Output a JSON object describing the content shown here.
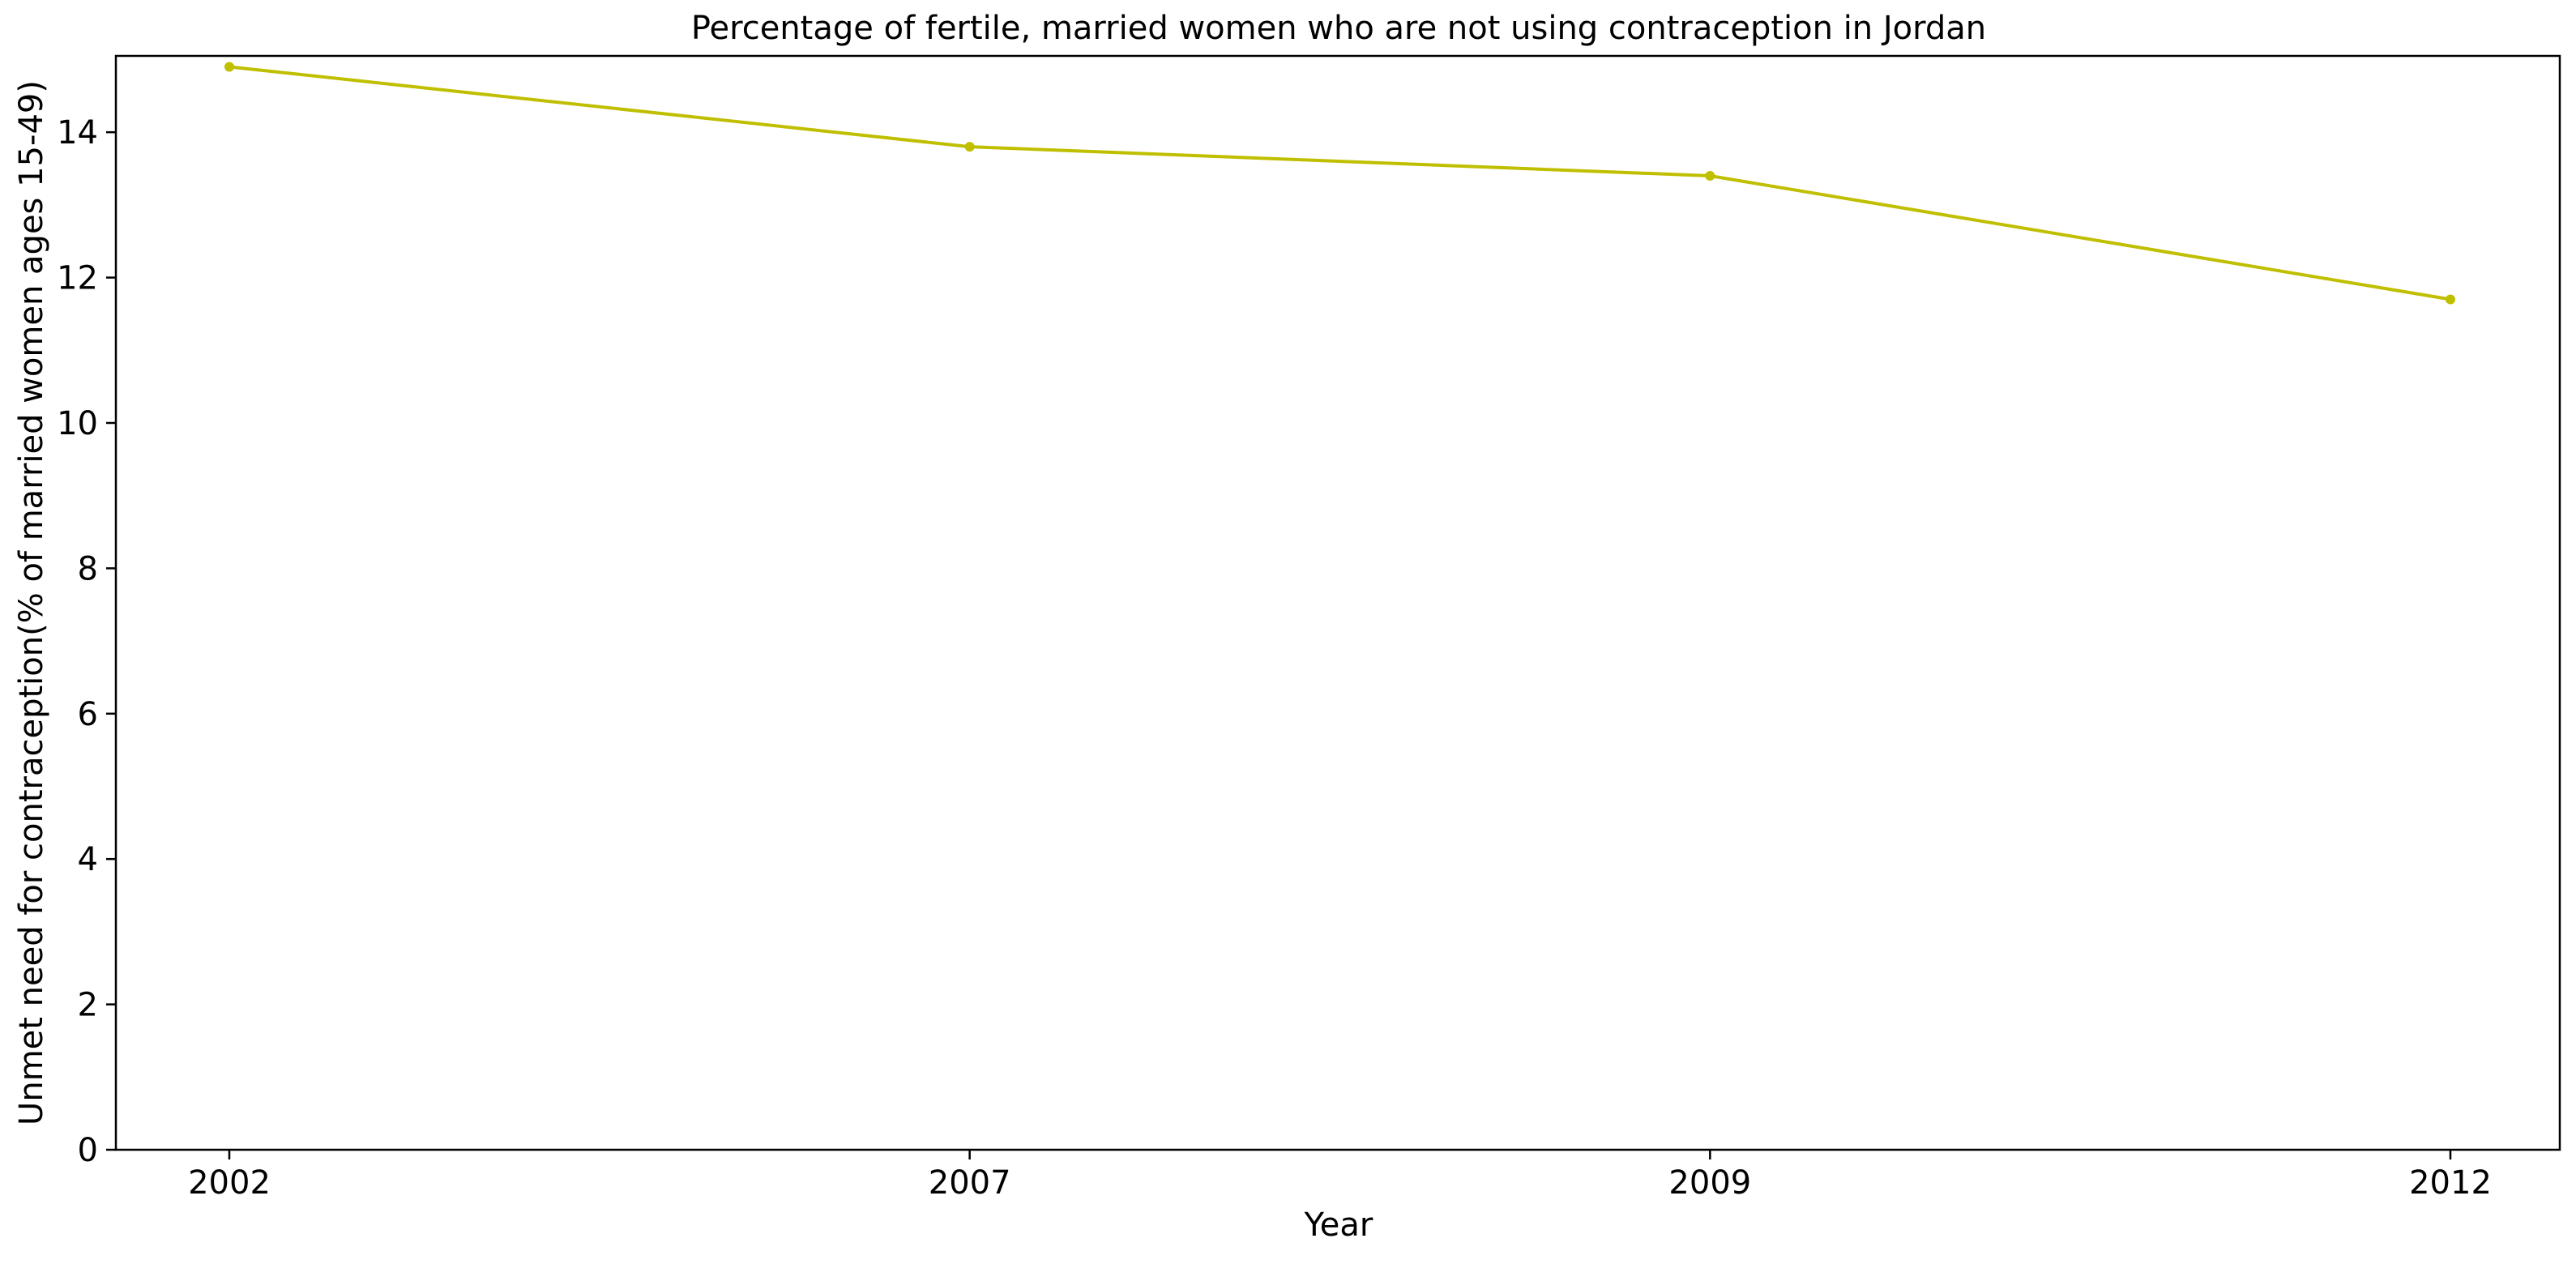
{
  "chart_data": {
    "type": "line",
    "title": "Percentage of fertile, married women who are not using contraception in Jordan",
    "xlabel": "Year",
    "ylabel": "Unmet need for contraception(% of married women ages 15-49)",
    "categories": [
      "2002",
      "2007",
      "2009",
      "2012"
    ],
    "series": [
      {
        "values": [
          14.9,
          13.8,
          13.4,
          11.7
        ],
        "color": "#bfbf00",
        "marker": "dot"
      }
    ],
    "ylim": [
      0,
      15.05
    ],
    "yticks": [
      0,
      2,
      4,
      6,
      8,
      10,
      12,
      14
    ],
    "grid": false,
    "legend": "none"
  }
}
